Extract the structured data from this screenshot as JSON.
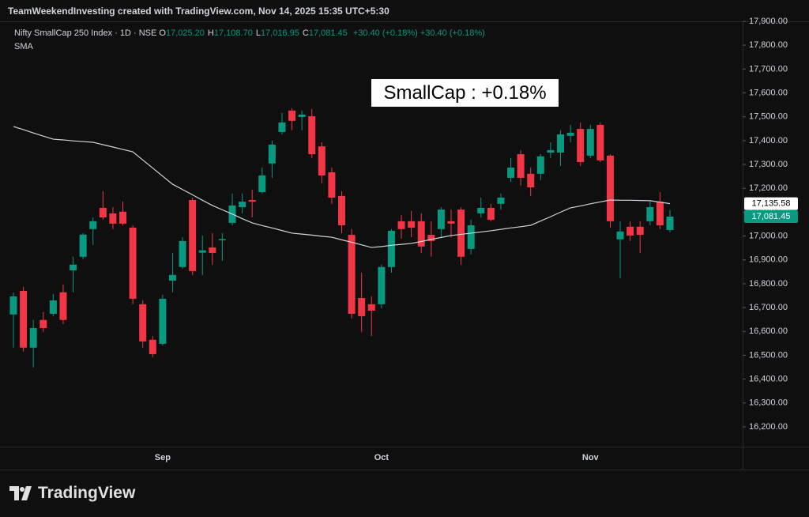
{
  "header": "TeamWeekendInvesting created with TradingView.com, Nov 14, 2025 15:35 UTC+5:30",
  "legend": {
    "symbol": "Nifty SmallCap 250 Index · 1D · NSE",
    "ohlc": [
      {
        "key": "O",
        "value": "17,025.20"
      },
      {
        "key": "H",
        "value": "17,108.70"
      },
      {
        "key": "L",
        "value": "17,016.95"
      },
      {
        "key": "C",
        "value": "17,081.45"
      }
    ],
    "changes": [
      "+30.40 (+0.18%)",
      "+30.40 (+0.18%)"
    ],
    "indicator": "SMA"
  },
  "logo": "TradingView",
  "chart_data": {
    "type": "candlestick",
    "annotation": "SmallCap : +0.18%",
    "up_color": "#089981",
    "down_color": "#f23645",
    "categories": [
      null,
      null,
      null,
      null,
      null,
      null,
      null,
      null,
      null,
      null,
      null,
      null,
      null,
      null,
      null,
      "Sep",
      null,
      null,
      null,
      null,
      null,
      null,
      null,
      null,
      null,
      null,
      null,
      null,
      null,
      null,
      null,
      null,
      null,
      null,
      null,
      null,
      null,
      "Oct",
      null,
      null,
      null,
      null,
      null,
      null,
      null,
      null,
      null,
      null,
      null,
      null,
      null,
      null,
      null,
      null,
      null,
      null,
      null,
      null,
      "Nov",
      null,
      null,
      null,
      null,
      null,
      null,
      null,
      null
    ],
    "open": [
      16671,
      16770,
      16532,
      16648,
      16674,
      16764,
      16856,
      16913,
      17029,
      17118,
      17095,
      17102,
      17035,
      16714,
      16565,
      16548,
      16813,
      16870,
      17151,
      16930,
      16952,
      16982,
      17055,
      17121,
      17151,
      17184,
      17304,
      17436,
      17526,
      17499,
      17502,
      17376,
      17267,
      17168,
      17005,
      16740,
      16714,
      16714,
      16870,
      17062,
      17062,
      17062,
      17005,
      17029,
      17062,
      17111,
      16946,
      17095,
      17118,
      17135,
      17244,
      17343,
      17261,
      17261,
      17350,
      17350,
      17420,
      17449,
      17337,
      17466,
      17337,
      16986,
      17039,
      17039,
      17062,
      17144,
      17025.2
    ],
    "high": [
      16763,
      16787,
      16648,
      16681,
      16757,
      16797,
      16913,
      17012,
      17078,
      17188,
      17121,
      17145,
      17045,
      16730,
      16581,
      16754,
      16929,
      16995,
      17161,
      17002,
      17012,
      17012,
      17178,
      17178,
      17194,
      17287,
      17400,
      17516,
      17536,
      17526,
      17532,
      17393,
      17287,
      17188,
      17029,
      16846,
      16747,
      16880,
      17029,
      17088,
      17105,
      17095,
      17062,
      17121,
      17111,
      17121,
      17068,
      17161,
      17135,
      17178,
      17327,
      17360,
      17287,
      17343,
      17393,
      17443,
      17466,
      17476,
      17466,
      17476,
      17343,
      17062,
      17062,
      17062,
      17145,
      17184,
      17108.7
    ],
    "low": [
      16532,
      16515,
      16449,
      16598,
      16664,
      16631,
      16764,
      16903,
      16962,
      17068,
      17029,
      17045,
      16714,
      16532,
      16492,
      16541,
      16764,
      16863,
      16836,
      16836,
      16879,
      16896,
      17045,
      17095,
      17078,
      17178,
      17244,
      17426,
      17443,
      17443,
      17327,
      17221,
      17135,
      17012,
      16654,
      16598,
      16581,
      16697,
      16846,
      16989,
      16995,
      16929,
      16913,
      16995,
      16995,
      16879,
      16923,
      17078,
      17062,
      17111,
      17227,
      17211,
      17168,
      17234,
      17327,
      17294,
      17393,
      17294,
      17327,
      17310,
      17035,
      16823,
      16979,
      16929,
      17045,
      17029,
      17016.95
    ],
    "close": [
      16747,
      16532,
      16614,
      16614,
      16730,
      16648,
      16880,
      17006,
      17062,
      17078,
      17052,
      17052,
      16737,
      16558,
      16505,
      16737,
      16837,
      16979,
      16853,
      16940,
      16929,
      16987,
      17128,
      17144,
      17144,
      17254,
      17383,
      17476,
      17483,
      17509,
      17343,
      17254,
      17161,
      17045,
      16674,
      16664,
      16687,
      16870,
      17022,
      17029,
      17035,
      16956,
      16979,
      17111,
      17052,
      16913,
      17045,
      17118,
      17068,
      17161,
      17287,
      17244,
      17204,
      17334,
      17360,
      17426,
      17433,
      17310,
      17449,
      17317,
      17062,
      17019,
      17002,
      17005,
      17121,
      17045,
      17081.45
    ],
    "series": [
      {
        "name": "SMA",
        "color": "#d1d4dc",
        "values": [
          17459,
          17446,
          17432,
          17419,
          17406,
          17403,
          17399,
          17396,
          17393,
          17383,
          17373,
          17363,
          17353,
          17319,
          17285,
          17251,
          17217,
          17195,
          17173,
          17150,
          17128,
          17110,
          17092,
          17073,
          17055,
          17044,
          17034,
          17023,
          17012,
          17008,
          17004,
          16999,
          16995,
          16984,
          16974,
          16963,
          16952,
          16956,
          16961,
          16965,
          16969,
          16977,
          16986,
          16994,
          17002,
          17007,
          17012,
          17017,
          17022,
          17028,
          17034,
          17039,
          17045,
          17063,
          17081,
          17100,
          17118,
          17126,
          17135,
          17143,
          17151,
          17150,
          17150,
          17149,
          17148,
          17142,
          17135.58
        ]
      }
    ],
    "price_labels": [
      {
        "value": 17135.58,
        "label": "17,135.58",
        "color": "#ffffff",
        "text_color": "#000000"
      },
      {
        "value": 17081.45,
        "label": "17,081.45",
        "color": "#089981",
        "text_color": "#ffffff"
      }
    ],
    "ylim": [
      16117,
      17900
    ],
    "yticks": [
      {
        "value": 16200,
        "label": "16,200.00"
      },
      {
        "value": 16300,
        "label": "16,300.00"
      },
      {
        "value": 16400,
        "label": "16,400.00"
      },
      {
        "value": 16500,
        "label": "16,500.00"
      },
      {
        "value": 16600,
        "label": "16,600.00"
      },
      {
        "value": 16700,
        "label": "16,700.00"
      },
      {
        "value": 16800,
        "label": "16,800.00"
      },
      {
        "value": 16900,
        "label": "16,900.00"
      },
      {
        "value": 17000,
        "label": "17,000.00"
      },
      {
        "value": 17100,
        "label": "17,100.00"
      },
      {
        "value": 17200,
        "label": "17,200.00"
      },
      {
        "value": 17300,
        "label": "17,300.00"
      },
      {
        "value": 17400,
        "label": "17,400.00"
      },
      {
        "value": 17500,
        "label": "17,500.00"
      },
      {
        "value": 17600,
        "label": "17,600.00"
      },
      {
        "value": 17700,
        "label": "17,700.00"
      },
      {
        "value": 17800,
        "label": "17,800.00"
      },
      {
        "value": 17900,
        "label": "17,900.00"
      }
    ],
    "grid": false
  }
}
